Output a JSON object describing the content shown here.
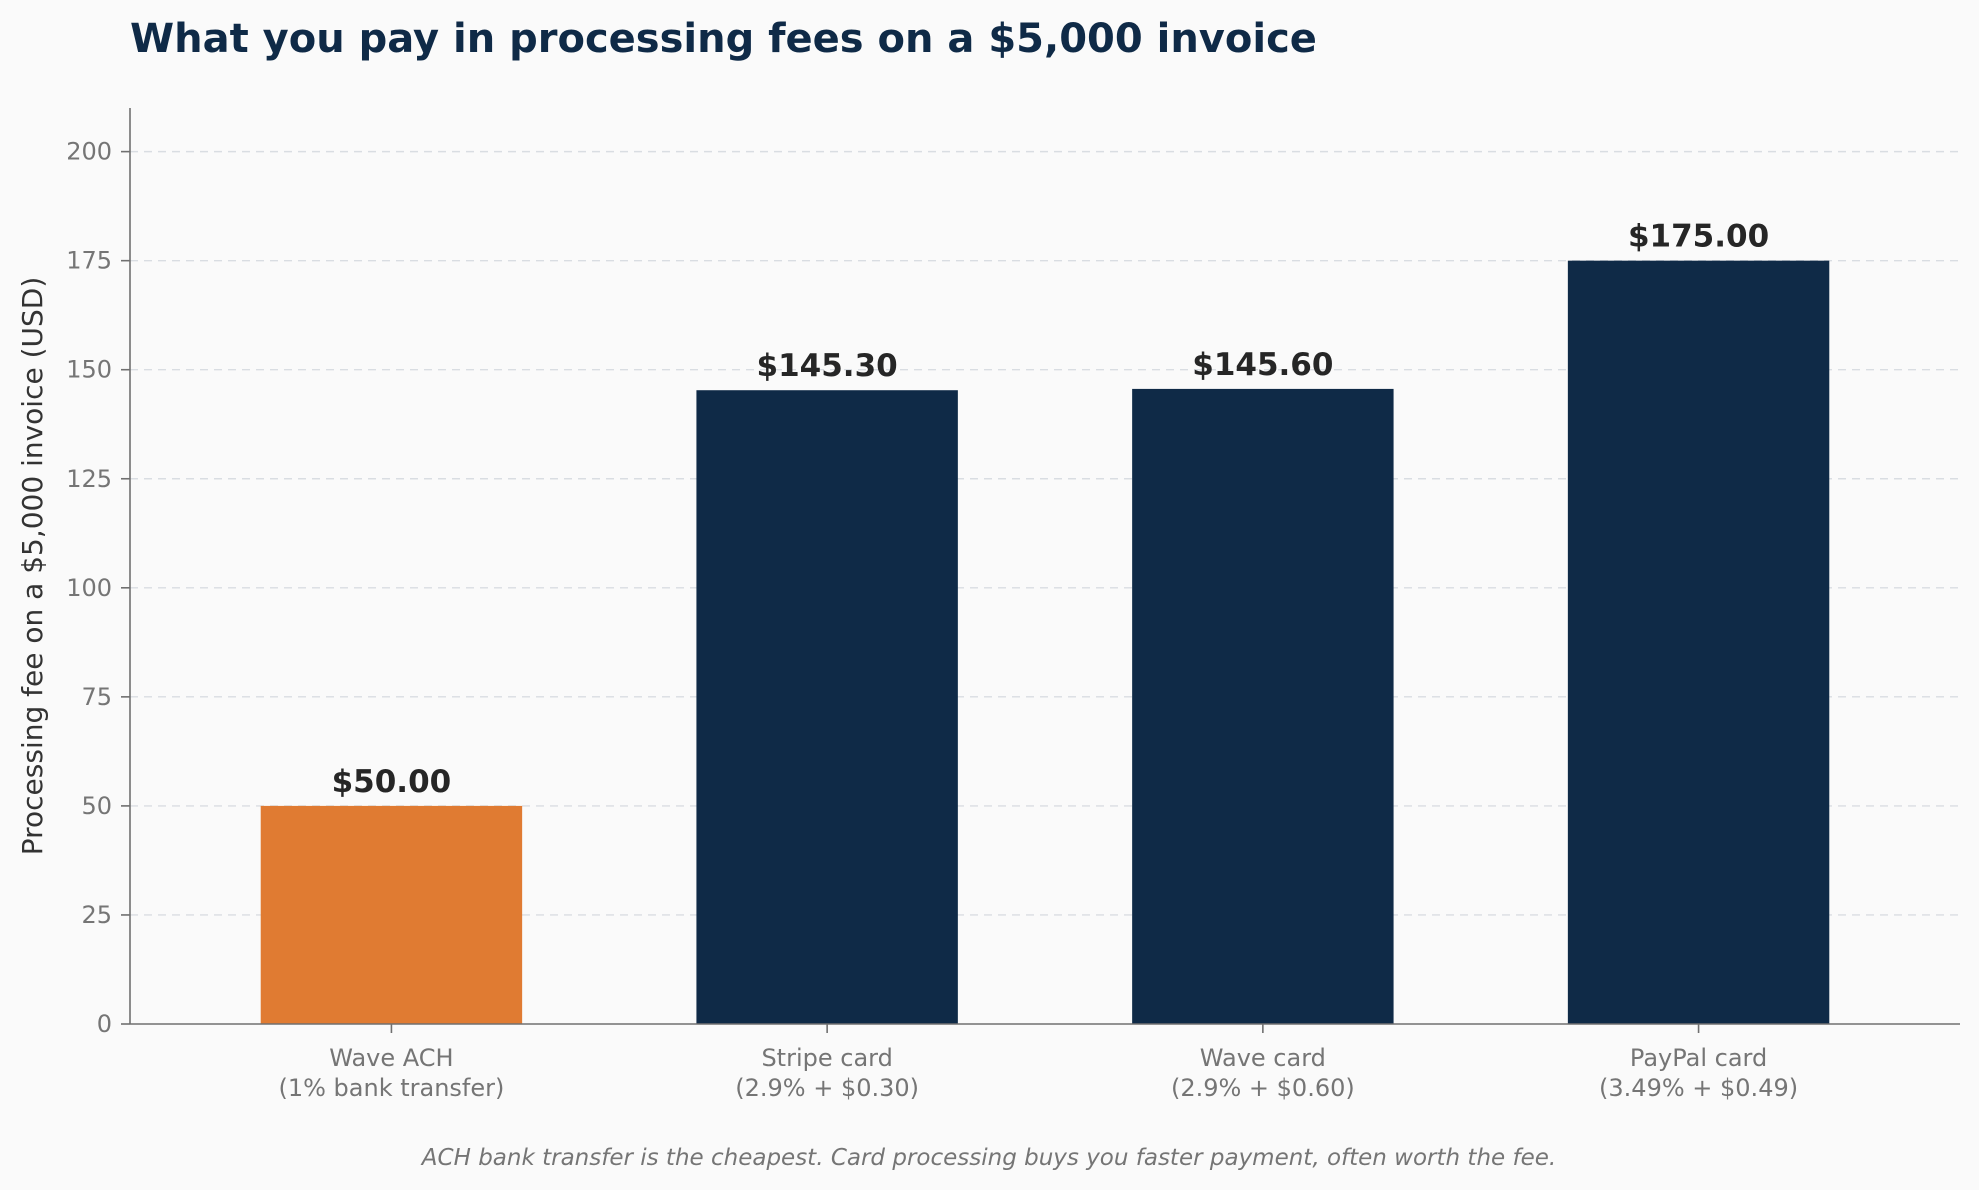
{
  "chart_data": {
    "type": "bar",
    "title": "What you pay in processing fees on a $5,000 invoice",
    "ylabel": "Processing fee on a $5,000 invoice (USD)",
    "xlabel": "",
    "ylim": [
      0,
      210
    ],
    "yticks": [
      0,
      25,
      50,
      75,
      100,
      125,
      150,
      175,
      200
    ],
    "grid": "horizontal-dashed",
    "categories": [
      [
        "Wave ACH",
        "(1% bank transfer)"
      ],
      [
        "Stripe card",
        "(2.9% + $0.30)"
      ],
      [
        "Wave card",
        "(2.9% + $0.60)"
      ],
      [
        "PayPal card",
        "(3.49% + $0.49)"
      ]
    ],
    "values": [
      50.0,
      145.3,
      145.6,
      175.0
    ],
    "value_labels": [
      "$50.00",
      "$145.30",
      "$145.60",
      "$175.00"
    ],
    "colors": [
      "#e07b32",
      "#0f2a47",
      "#0f2a47",
      "#0f2a47"
    ],
    "caption": "ACH bank transfer is the cheapest. Card processing buys you faster payment, often worth the fee."
  }
}
